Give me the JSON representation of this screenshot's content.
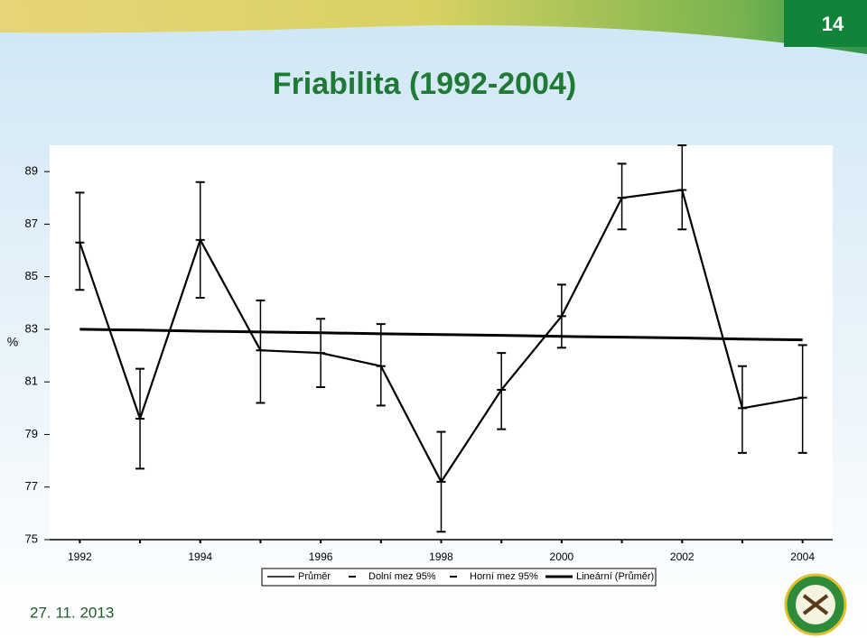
{
  "slide": {
    "number": "14",
    "title": "Friabilita (1992-2004)",
    "date": "27. 11. 2013"
  },
  "chart_data": {
    "type": "line",
    "ylabel": "%",
    "x": [
      1992,
      1993,
      1994,
      1995,
      1996,
      1997,
      1998,
      1999,
      2000,
      2001,
      2002,
      2003,
      2004
    ],
    "xlim": [
      1991.5,
      2004.5
    ],
    "xticks": [
      1992,
      1994,
      1996,
      1998,
      2000,
      2002,
      2004
    ],
    "ylim": [
      75,
      90
    ],
    "yticks": [
      75,
      77,
      79,
      81,
      83,
      85,
      87,
      89
    ],
    "legend": "bottom",
    "series": [
      {
        "name": "Průměr",
        "color": "#000000",
        "values": [
          86.3,
          79.6,
          86.4,
          82.2,
          82.1,
          81.6,
          77.2,
          80.7,
          83.5,
          88.0,
          88.3,
          80.0,
          80.4
        ]
      },
      {
        "name": "Dolní mez 95%",
        "color": "#000000",
        "values": [
          84.5,
          77.7,
          84.2,
          80.2,
          80.8,
          80.1,
          75.3,
          79.2,
          82.3,
          86.8,
          86.8,
          78.3,
          78.3
        ]
      },
      {
        "name": "Horní mez 95%",
        "color": "#000000",
        "values": [
          88.2,
          81.5,
          88.6,
          84.1,
          83.4,
          83.2,
          79.1,
          82.1,
          84.7,
          89.3,
          90.0,
          81.6,
          82.4
        ]
      },
      {
        "name": "Lineární (Průměr)",
        "color": "#000000",
        "values": [
          83.0,
          82.97,
          82.93,
          82.9,
          82.87,
          82.83,
          82.8,
          82.77,
          82.73,
          82.7,
          82.67,
          82.63,
          82.6
        ]
      }
    ]
  }
}
